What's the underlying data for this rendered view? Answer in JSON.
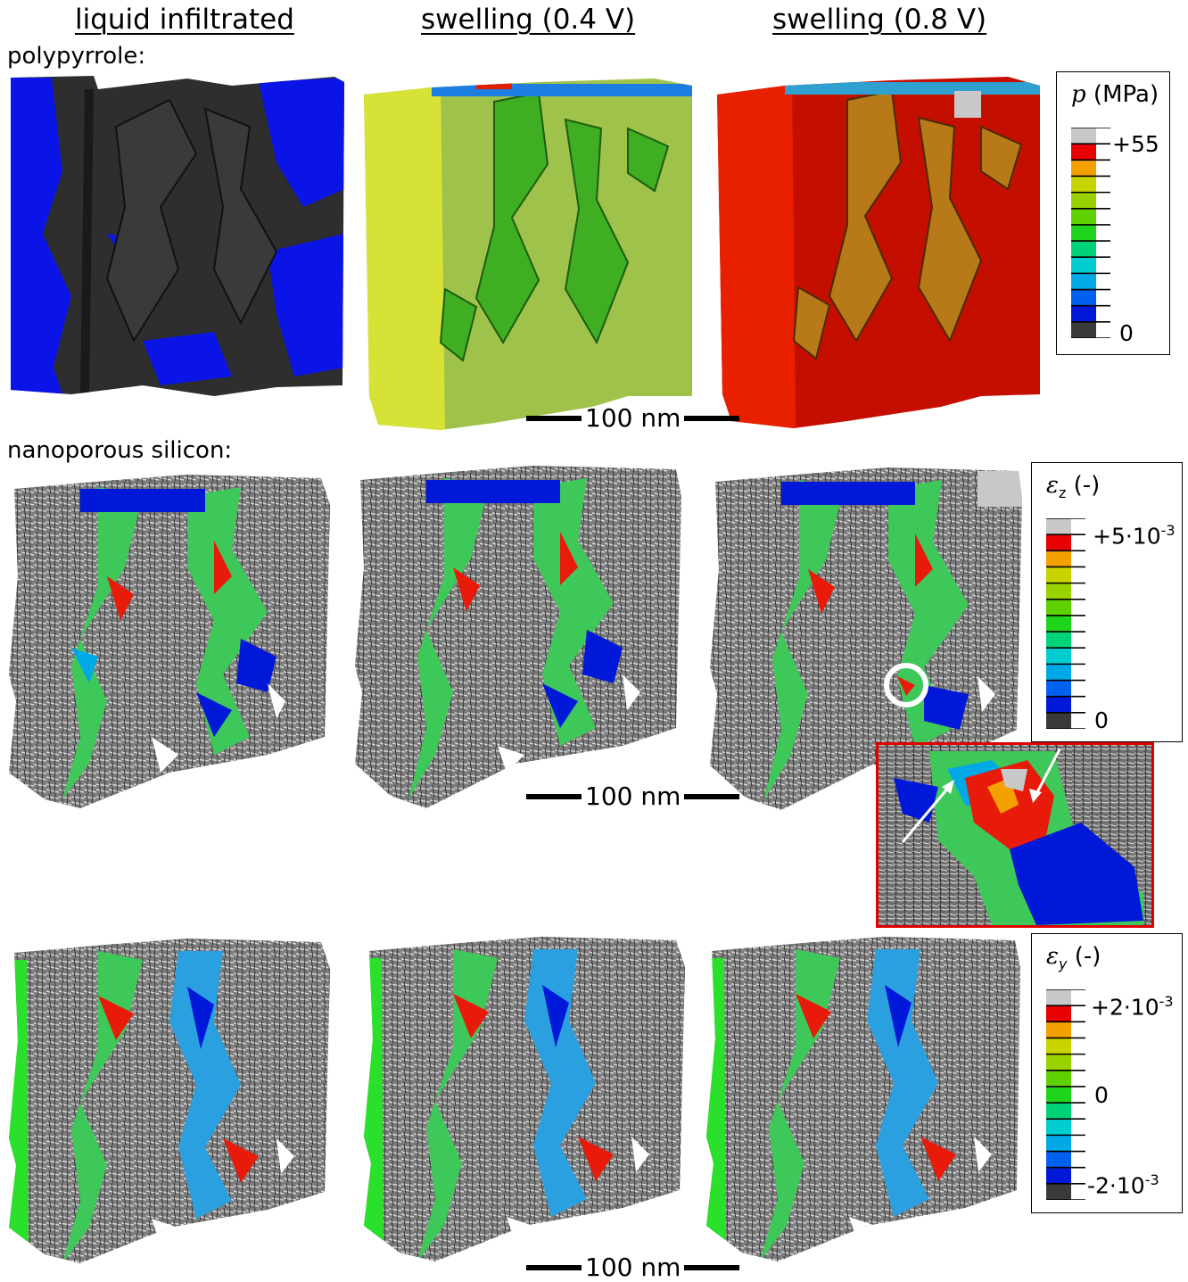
{
  "columns": {
    "liquid": "liquid infiltrated",
    "swell04": "swelling (0.4 V)",
    "swell08": "swelling (0.8 V)"
  },
  "rows": {
    "polypyrrole": "polypyrrole:",
    "silicon": "nanoporous silicon:"
  },
  "scalebars": {
    "top": "100 nm",
    "middle": "100 nm",
    "bottom": "100 nm"
  },
  "legend_p": {
    "symbol": "p",
    "unit": "(MPa)",
    "max": "+55",
    "min": "0",
    "colors": [
      "#c8c8c8",
      "#e80000",
      "#f3a100",
      "#c8d400",
      "#9ad200",
      "#5fd000",
      "#1ed41c",
      "#00d377",
      "#00cdd0",
      "#00a9e6",
      "#0060f0",
      "#0018d8",
      "#3a3a3a"
    ]
  },
  "legend_ez": {
    "symbol": "ε",
    "sub": "z",
    "unit": "(-)",
    "max": "+5·10",
    "max_exp": "-3",
    "min": "0",
    "colors": [
      "#c8c8c8",
      "#e80000",
      "#f3a100",
      "#c8d400",
      "#9ad200",
      "#5fd000",
      "#1ed41c",
      "#00d377",
      "#00cdd0",
      "#00a9e6",
      "#0060f0",
      "#0018d8",
      "#3a3a3a"
    ]
  },
  "legend_ey": {
    "symbol": "ε",
    "sub": "y",
    "unit": "(-)",
    "max": "+2·10",
    "max_exp": "-3",
    "mid": "0",
    "min": "-2·10",
    "min_exp": "-3",
    "colors": [
      "#c8c8c8",
      "#e80000",
      "#f3a100",
      "#c8d400",
      "#9ad200",
      "#5fd000",
      "#1ed41c",
      "#00d377",
      "#00cdd0",
      "#00a9e6",
      "#0060f0",
      "#0018d8",
      "#3a3a3a"
    ]
  },
  "colors": {
    "ppy_liquid_base": "#2e2e2e",
    "ppy_liquid_patch": "#0a14e6",
    "ppy_04_base": "#9ec24a",
    "ppy_08_base": "#c40e00",
    "si_gray": "#7d7d7d",
    "zoom_border": "#e00000"
  }
}
